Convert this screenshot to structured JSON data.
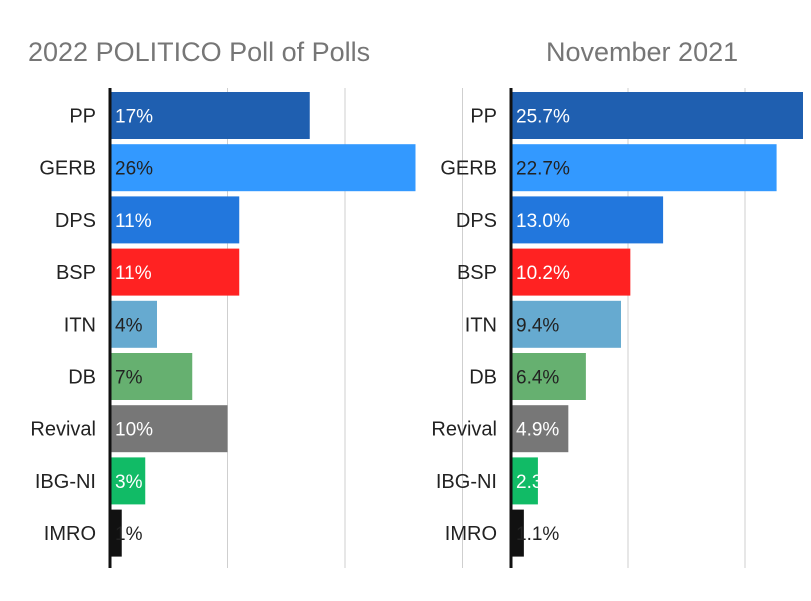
{
  "chart_data": [
    {
      "type": "bar",
      "orientation": "horizontal",
      "title": "2022 POLITICO Poll of Polls",
      "xlim": [
        0,
        30
      ],
      "grid": true,
      "categories": [
        "PP",
        "GERB",
        "DPS",
        "BSP",
        "ITN",
        "DB",
        "Revival",
        "IBG-NI",
        "IMRO"
      ],
      "values": [
        17,
        26,
        11,
        11,
        4,
        7,
        10,
        3,
        1
      ],
      "labels": [
        "17%",
        "26%",
        "11%",
        "11%",
        "4%",
        "7%",
        "10%",
        "3%",
        "1%"
      ]
    },
    {
      "type": "bar",
      "orientation": "horizontal",
      "title": "November 2021",
      "xlim": [
        0,
        30
      ],
      "grid": true,
      "categories": [
        "PP",
        "GERB",
        "DPS",
        "BSP",
        "ITN",
        "DB",
        "Revival",
        "IBG-NI",
        "IMRO"
      ],
      "values": [
        25.7,
        22.7,
        13.0,
        10.2,
        9.4,
        6.4,
        4.9,
        2.3,
        1.1
      ],
      "labels": [
        "25.7%",
        "22.7%",
        "13.0%",
        "10.2%",
        "9.4%",
        "6.4%",
        "4.9%",
        "2.3%",
        "1.1%"
      ]
    }
  ],
  "colors": {
    "PP": "#1f5fb0",
    "GERB": "#3399ff",
    "DPS": "#2277dd",
    "BSP": "#ff2222",
    "ITN": "#66aad0",
    "DB": "#66b070",
    "Revival": "#777777",
    "IBG-NI": "#11bb66",
    "IMRO": "#111111"
  },
  "label_colors": {
    "PP": "#ffffff",
    "GERB": "#222222",
    "DPS": "#ffffff",
    "BSP": "#ffffff",
    "ITN": "#222222",
    "DB": "#222222",
    "Revival": "#ffffff",
    "IBG-NI": "#ffffff",
    "IMRO": "#222222"
  }
}
